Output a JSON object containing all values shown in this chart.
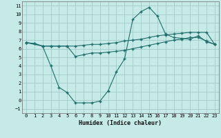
{
  "xlabel": "Humidex (Indice chaleur)",
  "background_color": "#c6eae8",
  "grid_color": "#a0cac8",
  "line_color": "#1e6e6a",
  "xlim": [
    -0.5,
    23.5
  ],
  "ylim": [
    -1.5,
    11.5
  ],
  "xticks": [
    0,
    1,
    2,
    3,
    4,
    5,
    6,
    7,
    8,
    9,
    10,
    11,
    12,
    13,
    14,
    15,
    16,
    17,
    18,
    19,
    20,
    21,
    22,
    23
  ],
  "yticks": [
    -1,
    0,
    1,
    2,
    3,
    4,
    5,
    6,
    7,
    8,
    9,
    10,
    11
  ],
  "line1_x": [
    0,
    1,
    2,
    3,
    4,
    5,
    6,
    7,
    8,
    9,
    10,
    11,
    12,
    13,
    14,
    15,
    16,
    17,
    18,
    19,
    20,
    21,
    22,
    23
  ],
  "line1_y": [
    6.7,
    6.6,
    6.3,
    6.3,
    6.3,
    6.3,
    6.3,
    6.4,
    6.5,
    6.5,
    6.6,
    6.7,
    6.9,
    7.0,
    7.1,
    7.3,
    7.5,
    7.6,
    7.7,
    7.8,
    7.9,
    7.9,
    7.9,
    6.5
  ],
  "line2_x": [
    0,
    2,
    3,
    4,
    5,
    6,
    7,
    8,
    9,
    10,
    11,
    12,
    13,
    14,
    15,
    16,
    17,
    18,
    19,
    20,
    21,
    22,
    23
  ],
  "line2_y": [
    6.7,
    6.3,
    4.0,
    1.5,
    0.9,
    -0.3,
    -0.3,
    -0.3,
    -0.1,
    1.1,
    3.3,
    4.8,
    9.4,
    10.3,
    10.8,
    9.8,
    7.7,
    7.3,
    7.2,
    7.1,
    7.5,
    6.8,
    6.5
  ],
  "line3_x": [
    0,
    1,
    2,
    3,
    4,
    5,
    6,
    7,
    8,
    9,
    10,
    11,
    12,
    13,
    14,
    15,
    16,
    17,
    18,
    19,
    20,
    21,
    22,
    23
  ],
  "line3_y": [
    6.7,
    6.6,
    6.3,
    6.3,
    6.3,
    6.3,
    5.1,
    5.3,
    5.5,
    5.5,
    5.6,
    5.7,
    5.8,
    6.0,
    6.2,
    6.4,
    6.6,
    6.8,
    7.0,
    7.1,
    7.3,
    7.3,
    6.9,
    6.5
  ]
}
